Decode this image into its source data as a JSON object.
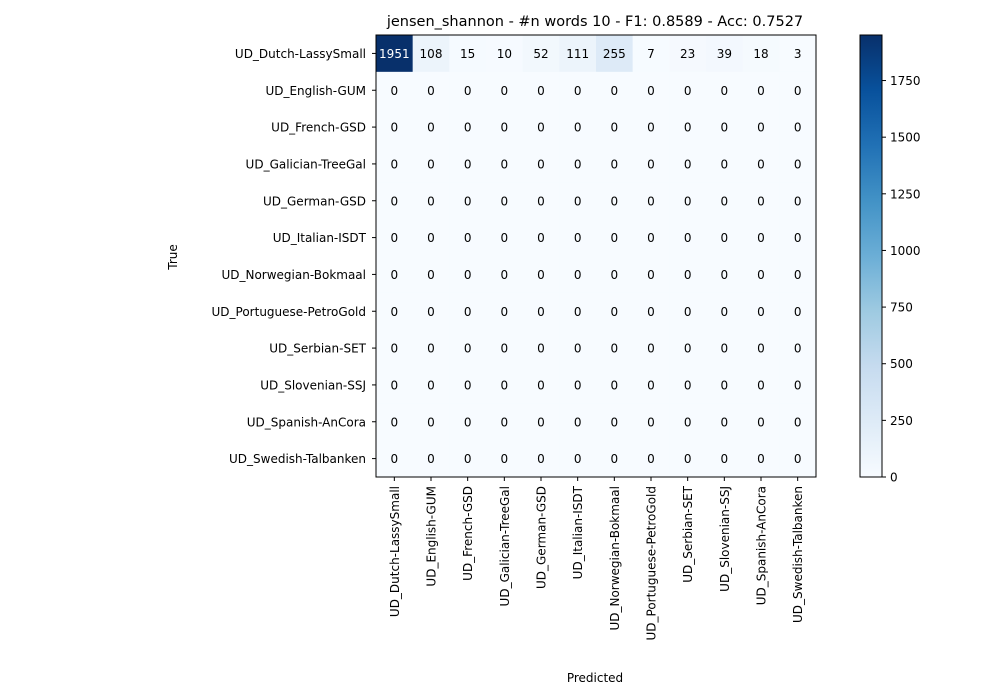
{
  "chart_data": {
    "type": "heatmap",
    "title": "jensen_shannon - #n words 10 - F1: 0.8589 - Acc: 0.7527",
    "xlabel": "Predicted",
    "ylabel": "True",
    "x_categories": [
      "UD_Dutch-LassySmall",
      "UD_English-GUM",
      "UD_French-GSD",
      "UD_Galician-TreeGal",
      "UD_German-GSD",
      "UD_Italian-ISDT",
      "UD_Norwegian-Bokmaal",
      "UD_Portuguese-PetroGold",
      "UD_Serbian-SET",
      "UD_Slovenian-SSJ",
      "UD_Spanish-AnCora",
      "UD_Swedish-Talbanken"
    ],
    "y_categories": [
      "UD_Dutch-LassySmall",
      "UD_English-GUM",
      "UD_French-GSD",
      "UD_Galician-TreeGal",
      "UD_German-GSD",
      "UD_Italian-ISDT",
      "UD_Norwegian-Bokmaal",
      "UD_Portuguese-PetroGold",
      "UD_Serbian-SET",
      "UD_Slovenian-SSJ",
      "UD_Spanish-AnCora",
      "UD_Swedish-Talbanken"
    ],
    "matrix": [
      [
        1951,
        108,
        15,
        10,
        52,
        111,
        255,
        7,
        23,
        39,
        18,
        3
      ],
      [
        0,
        0,
        0,
        0,
        0,
        0,
        0,
        0,
        0,
        0,
        0,
        0
      ],
      [
        0,
        0,
        0,
        0,
        0,
        0,
        0,
        0,
        0,
        0,
        0,
        0
      ],
      [
        0,
        0,
        0,
        0,
        0,
        0,
        0,
        0,
        0,
        0,
        0,
        0
      ],
      [
        0,
        0,
        0,
        0,
        0,
        0,
        0,
        0,
        0,
        0,
        0,
        0
      ],
      [
        0,
        0,
        0,
        0,
        0,
        0,
        0,
        0,
        0,
        0,
        0,
        0
      ],
      [
        0,
        0,
        0,
        0,
        0,
        0,
        0,
        0,
        0,
        0,
        0,
        0
      ],
      [
        0,
        0,
        0,
        0,
        0,
        0,
        0,
        0,
        0,
        0,
        0,
        0
      ],
      [
        0,
        0,
        0,
        0,
        0,
        0,
        0,
        0,
        0,
        0,
        0,
        0
      ],
      [
        0,
        0,
        0,
        0,
        0,
        0,
        0,
        0,
        0,
        0,
        0,
        0
      ],
      [
        0,
        0,
        0,
        0,
        0,
        0,
        0,
        0,
        0,
        0,
        0,
        0
      ],
      [
        0,
        0,
        0,
        0,
        0,
        0,
        0,
        0,
        0,
        0,
        0,
        0
      ]
    ],
    "colorscale": "Blues",
    "colorscale_low": "#f7fbff",
    "colorscale_high": "#08306b",
    "vrange": [
      0,
      1951
    ],
    "colorbar_ticks": [
      0,
      250,
      500,
      750,
      1000,
      1250,
      1500,
      1750
    ],
    "grid": false,
    "legend": "colorbar-right"
  }
}
